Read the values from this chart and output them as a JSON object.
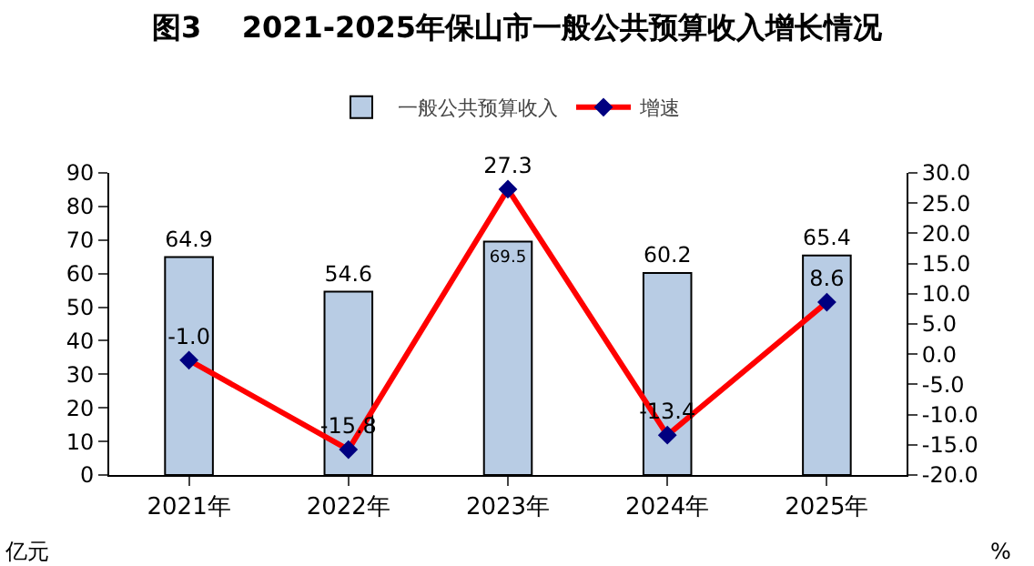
{
  "chart_data": {
    "type": "bar",
    "title": "图3    2021-2025年保山市一般公共预算收入增长情况",
    "categories": [
      "2021年",
      "2022年",
      "2023年",
      "2024年",
      "2025年"
    ],
    "series": [
      {
        "name": "一般公共预算收入",
        "color": "#b8cce4",
        "values": [
          64.9,
          54.6,
          69.5,
          60.2,
          65.4
        ],
        "value_labels": [
          "64.9",
          "54.6",
          "69.5",
          "60.2",
          "65.4"
        ]
      },
      {
        "name": "增速",
        "type": "line",
        "axis": "y2",
        "color": "#ff0000",
        "marker": "diamond",
        "values": [
          -1.0,
          -15.8,
          27.3,
          -13.4,
          8.6
        ],
        "value_labels": [
          "-1.0",
          "-15.8",
          "27.3",
          "-13.4",
          "8.6"
        ]
      }
    ],
    "ylabel": "亿元",
    "y2label": "%",
    "ylim": [
      0,
      90
    ],
    "yticks": [
      0,
      10,
      20,
      30,
      40,
      50,
      60,
      70,
      80,
      90
    ],
    "y2lim": [
      -20,
      30
    ],
    "y2ticks": [
      {
        "value": -20,
        "label": "-20.0"
      },
      {
        "value": -15,
        "label": "-15.0"
      },
      {
        "value": -10,
        "label": "-10.0"
      },
      {
        "value": -5,
        "label": "-5.0"
      },
      {
        "value": 0,
        "label": "0.0"
      },
      {
        "value": 5,
        "label": "5.0"
      },
      {
        "value": 10,
        "label": "10.0"
      },
      {
        "value": 15,
        "label": "15.0"
      },
      {
        "value": 20,
        "label": "20.0"
      },
      {
        "value": 25,
        "label": "25.0"
      },
      {
        "value": 30,
        "label": "30.0"
      }
    ],
    "legend": "top"
  }
}
